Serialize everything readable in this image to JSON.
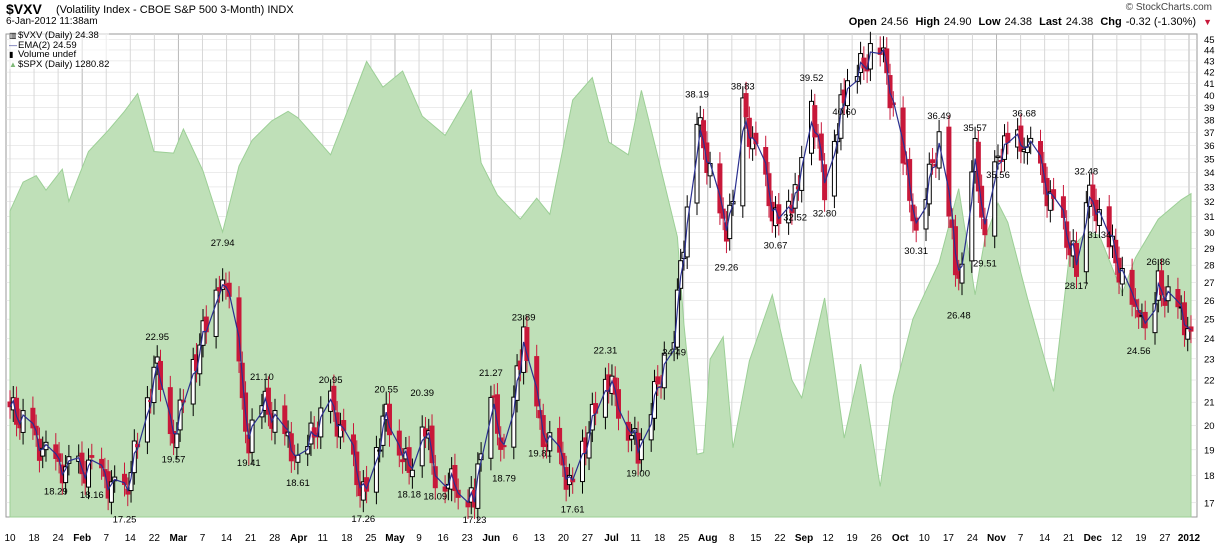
{
  "header": {
    "symbol": "$VXV",
    "description": "(Volatility Index - CBOE S&P 500 3-Month)",
    "exchange": "INDX",
    "timestamp": "6-Jan-2012 11:38am",
    "brand": "© StockCharts.com",
    "quote": {
      "open_label": "Open",
      "open": "24.56",
      "high_label": "High",
      "high": "24.90",
      "low_label": "Low",
      "low": "24.38",
      "last_label": "Last",
      "last": "24.38",
      "chg_label": "Chg",
      "chg": "-0.32 (-1.30%)"
    }
  },
  "legend": {
    "main": "$VXV (Daily) 24.38",
    "ema": "EMA(2) 24.59",
    "volume": "Volume undef",
    "overlay": "$SPX (Daily) 1280.82"
  },
  "colors": {
    "up": "#000000",
    "down": "#c8183a",
    "ema": "#2a2f8f",
    "spx_fill": "#bfe0b8",
    "spx_stroke": "#9ccf96",
    "grid": "#d8d8d8"
  },
  "chart_data": {
    "type": "candlestick",
    "title": "$VXV (Volatility Index - CBOE S&P 500 3-Month)",
    "ylim": [
      16.5,
      45.5
    ],
    "y_ticks": [
      17,
      18,
      19,
      20,
      21,
      22,
      23,
      24,
      25,
      26,
      27,
      28,
      29,
      30,
      31,
      32,
      33,
      34,
      35,
      36,
      37,
      38,
      39,
      40,
      41,
      42,
      43,
      44,
      45
    ],
    "y_log_scale": true,
    "x_range": [
      "2011-01-10",
      "2012-01-06"
    ],
    "x_tick_labels": [
      "10",
      "18",
      "24",
      "Feb",
      "7",
      "14",
      "22",
      "Mar",
      "7",
      "14",
      "21",
      "28",
      "Apr",
      "11",
      "18",
      "25",
      "May",
      "9",
      "16",
      "23",
      "Jun",
      "6",
      "13",
      "20",
      "27",
      "Jul",
      "11",
      "18",
      "25",
      "Aug",
      "8",
      "15",
      "22",
      "Sep",
      "12",
      "19",
      "26",
      "Oct",
      "10",
      "17",
      "24",
      "Nov",
      "7",
      "14",
      "21",
      "Dec",
      "12",
      "19",
      "27",
      "2012"
    ],
    "month_labels": [
      "Feb",
      "Mar",
      "Apr",
      "May",
      "Jun",
      "Jul",
      "Aug",
      "Sep",
      "Oct",
      "Nov",
      "Dec",
      "2012"
    ],
    "series": [
      {
        "name": "$VXV (Daily)",
        "style": "candlestick",
        "key_closes": [
          {
            "date": "2011-01-10",
            "close": 20.8
          },
          {
            "date": "2011-01-24",
            "close": 18.29
          },
          {
            "date": "2011-02-04",
            "close": 18.16
          },
          {
            "date": "2011-02-14",
            "close": 17.25
          },
          {
            "date": "2011-02-24",
            "close": 22.95
          },
          {
            "date": "2011-03-01",
            "close": 19.57
          },
          {
            "date": "2011-03-16",
            "close": 27.94
          },
          {
            "date": "2011-03-24",
            "close": 19.41
          },
          {
            "date": "2011-03-28",
            "close": 21.1
          },
          {
            "date": "2011-04-08",
            "close": 18.61
          },
          {
            "date": "2011-04-18",
            "close": 20.95
          },
          {
            "date": "2011-04-28",
            "close": 17.26
          },
          {
            "date": "2011-05-05",
            "close": 20.55
          },
          {
            "date": "2011-05-12",
            "close": 18.18
          },
          {
            "date": "2011-05-16",
            "close": 20.39
          },
          {
            "date": "2011-05-20",
            "close": 18.09
          },
          {
            "date": "2011-06-01",
            "close": 17.23
          },
          {
            "date": "2011-06-06",
            "close": 21.27
          },
          {
            "date": "2011-06-10",
            "close": 18.79
          },
          {
            "date": "2011-06-16",
            "close": 23.89
          },
          {
            "date": "2011-06-21",
            "close": 19.81
          },
          {
            "date": "2011-07-01",
            "close": 17.61
          },
          {
            "date": "2011-07-11",
            "close": 22.31
          },
          {
            "date": "2011-07-21",
            "close": 19.0
          },
          {
            "date": "2011-08-01",
            "close": 24.49
          },
          {
            "date": "2011-08-08",
            "close": 38.19
          },
          {
            "date": "2011-08-17",
            "close": 29.26
          },
          {
            "date": "2011-08-22",
            "close": 38.83
          },
          {
            "date": "2011-09-01",
            "close": 30.67
          },
          {
            "date": "2011-09-07",
            "close": 32.52
          },
          {
            "date": "2011-09-12",
            "close": 39.52
          },
          {
            "date": "2011-09-16",
            "close": 32.8
          },
          {
            "date": "2011-09-22",
            "close": 40.6
          },
          {
            "date": "2011-10-03",
            "close": 44.66
          },
          {
            "date": "2011-10-14",
            "close": 30.31
          },
          {
            "date": "2011-10-21",
            "close": 36.49
          },
          {
            "date": "2011-10-27",
            "close": 26.48
          },
          {
            "date": "2011-11-01",
            "close": 35.57
          },
          {
            "date": "2011-11-04",
            "close": 29.51
          },
          {
            "date": "2011-11-08",
            "close": 35.56
          },
          {
            "date": "2011-11-16",
            "close": 36.68
          },
          {
            "date": "2011-12-02",
            "close": 28.17
          },
          {
            "date": "2011-12-05",
            "close": 32.48
          },
          {
            "date": "2011-12-09",
            "close": 31.34
          },
          {
            "date": "2011-12-21",
            "close": 24.56
          },
          {
            "date": "2011-12-27",
            "close": 26.86
          },
          {
            "date": "2012-01-06",
            "close": 24.38
          }
        ]
      },
      {
        "name": "EMA(2)",
        "style": "line",
        "last": 24.59
      },
      {
        "name": "$SPX (Daily)",
        "style": "area",
        "last": 1280.82,
        "ylim": [
          1080,
          1380
        ],
        "points": [
          {
            "date": "2011-01-10",
            "value": 1270
          },
          {
            "date": "2011-01-14",
            "value": 1288
          },
          {
            "date": "2011-01-18",
            "value": 1292
          },
          {
            "date": "2011-01-21",
            "value": 1283
          },
          {
            "date": "2011-01-26",
            "value": 1296
          },
          {
            "date": "2011-01-28",
            "value": 1276
          },
          {
            "date": "2011-02-03",
            "value": 1307
          },
          {
            "date": "2011-02-09",
            "value": 1320
          },
          {
            "date": "2011-02-14",
            "value": 1332
          },
          {
            "date": "2011-02-18",
            "value": 1343
          },
          {
            "date": "2011-02-23",
            "value": 1307
          },
          {
            "date": "2011-03-01",
            "value": 1306
          },
          {
            "date": "2011-03-04",
            "value": 1321
          },
          {
            "date": "2011-03-10",
            "value": 1295
          },
          {
            "date": "2011-03-16",
            "value": 1257
          },
          {
            "date": "2011-03-21",
            "value": 1298
          },
          {
            "date": "2011-03-25",
            "value": 1314
          },
          {
            "date": "2011-03-31",
            "value": 1326
          },
          {
            "date": "2011-04-05",
            "value": 1332
          },
          {
            "date": "2011-04-08",
            "value": 1328
          },
          {
            "date": "2011-04-18",
            "value": 1305
          },
          {
            "date": "2011-04-26",
            "value": 1347
          },
          {
            "date": "2011-04-29",
            "value": 1363
          },
          {
            "date": "2011-05-04",
            "value": 1347
          },
          {
            "date": "2011-05-10",
            "value": 1357
          },
          {
            "date": "2011-05-16",
            "value": 1329
          },
          {
            "date": "2011-05-23",
            "value": 1317
          },
          {
            "date": "2011-05-31",
            "value": 1345
          },
          {
            "date": "2011-06-03",
            "value": 1300
          },
          {
            "date": "2011-06-08",
            "value": 1280
          },
          {
            "date": "2011-06-15",
            "value": 1265
          },
          {
            "date": "2011-06-20",
            "value": 1278
          },
          {
            "date": "2011-06-24",
            "value": 1268
          },
          {
            "date": "2011-07-01",
            "value": 1339
          },
          {
            "date": "2011-07-07",
            "value": 1353
          },
          {
            "date": "2011-07-12",
            "value": 1313
          },
          {
            "date": "2011-07-18",
            "value": 1305
          },
          {
            "date": "2011-07-22",
            "value": 1345
          },
          {
            "date": "2011-07-27",
            "value": 1304
          },
          {
            "date": "2011-08-02",
            "value": 1254
          },
          {
            "date": "2011-08-04",
            "value": 1200
          },
          {
            "date": "2011-08-08",
            "value": 1119
          },
          {
            "date": "2011-08-10",
            "value": 1120
          },
          {
            "date": "2011-08-12",
            "value": 1178
          },
          {
            "date": "2011-08-16",
            "value": 1192
          },
          {
            "date": "2011-08-19",
            "value": 1123
          },
          {
            "date": "2011-08-24",
            "value": 1177
          },
          {
            "date": "2011-08-31",
            "value": 1218
          },
          {
            "date": "2011-09-06",
            "value": 1165
          },
          {
            "date": "2011-09-09",
            "value": 1154
          },
          {
            "date": "2011-09-16",
            "value": 1216
          },
          {
            "date": "2011-09-22",
            "value": 1129
          },
          {
            "date": "2011-09-27",
            "value": 1175
          },
          {
            "date": "2011-10-03",
            "value": 1099
          },
          {
            "date": "2011-10-07",
            "value": 1155
          },
          {
            "date": "2011-10-13",
            "value": 1203
          },
          {
            "date": "2011-10-18",
            "value": 1225
          },
          {
            "date": "2011-10-21",
            "value": 1238
          },
          {
            "date": "2011-10-27",
            "value": 1284
          },
          {
            "date": "2011-11-01",
            "value": 1218
          },
          {
            "date": "2011-11-04",
            "value": 1253
          },
          {
            "date": "2011-11-08",
            "value": 1275
          },
          {
            "date": "2011-11-11",
            "value": 1263
          },
          {
            "date": "2011-11-17",
            "value": 1216
          },
          {
            "date": "2011-11-25",
            "value": 1158
          },
          {
            "date": "2011-11-30",
            "value": 1246
          },
          {
            "date": "2011-12-05",
            "value": 1257
          },
          {
            "date": "2011-12-09",
            "value": 1255
          },
          {
            "date": "2011-12-16",
            "value": 1219
          },
          {
            "date": "2011-12-20",
            "value": 1241
          },
          {
            "date": "2011-12-27",
            "value": 1265
          },
          {
            "date": "2012-01-03",
            "value": 1277
          },
          {
            "date": "2012-01-06",
            "value": 1280.82
          }
        ]
      }
    ],
    "labeled_points": [
      "18.29",
      "18.16",
      "17.25",
      "22.95",
      "19.57",
      "27.94",
      "19.41",
      "21.10",
      "18.61",
      "20.95",
      "17.26",
      "20.55",
      "18.18",
      "20.39",
      "18.09",
      "17.23",
      "21.27",
      "18.79",
      "23.89",
      "19.81",
      "17.61",
      "22.31",
      "19.00",
      "24.49",
      "38.19",
      "29.26",
      "38.83",
      "30.67",
      "32.52",
      "39.52",
      "32.80",
      "40.60",
      "44.66",
      "30.31",
      "36.49",
      "26.48",
      "35.57",
      "29.51",
      "35.56",
      "36.68",
      "28.17",
      "32.48",
      "31.34",
      "24.56",
      "26.86"
    ]
  }
}
